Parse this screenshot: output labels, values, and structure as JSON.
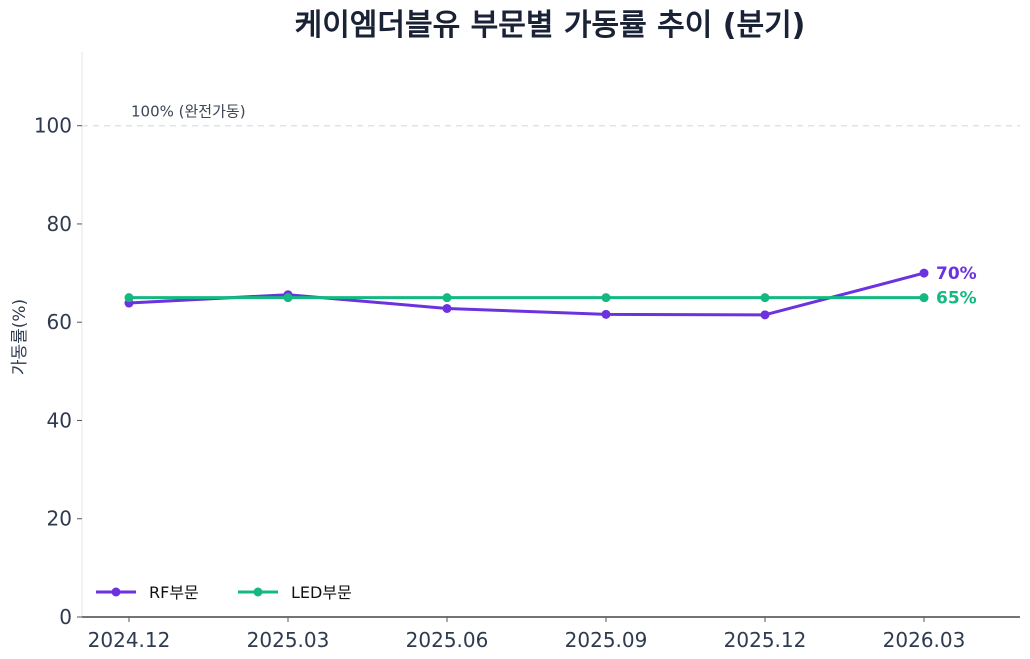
{
  "chart_data": {
    "type": "line",
    "title": "케이엠더블유 부문별 가동률 추이 (분기)",
    "xlabel": "",
    "ylabel": "가동률(%)",
    "categories": [
      "2024.12",
      "2025.03",
      "2025.06",
      "2025.09",
      "2025.12",
      "2026.03"
    ],
    "ylim": [
      0,
      115
    ],
    "yticks": [
      0,
      20,
      40,
      60,
      80,
      100
    ],
    "series": [
      {
        "name": "RF부문",
        "color": "#6d32e0",
        "values": [
          63.9,
          65.6,
          62.8,
          61.6,
          61.5,
          70.0
        ],
        "end_label": "70%"
      },
      {
        "name": "LED부문",
        "color": "#13b981",
        "values": [
          65.0,
          65.0,
          65.0,
          65.0,
          65.0,
          65.0
        ],
        "end_label": "65%"
      }
    ],
    "reference_line": {
      "value": 100,
      "label": "100% (완전가동)"
    },
    "grid": false,
    "legend_position": "bottom-left"
  }
}
